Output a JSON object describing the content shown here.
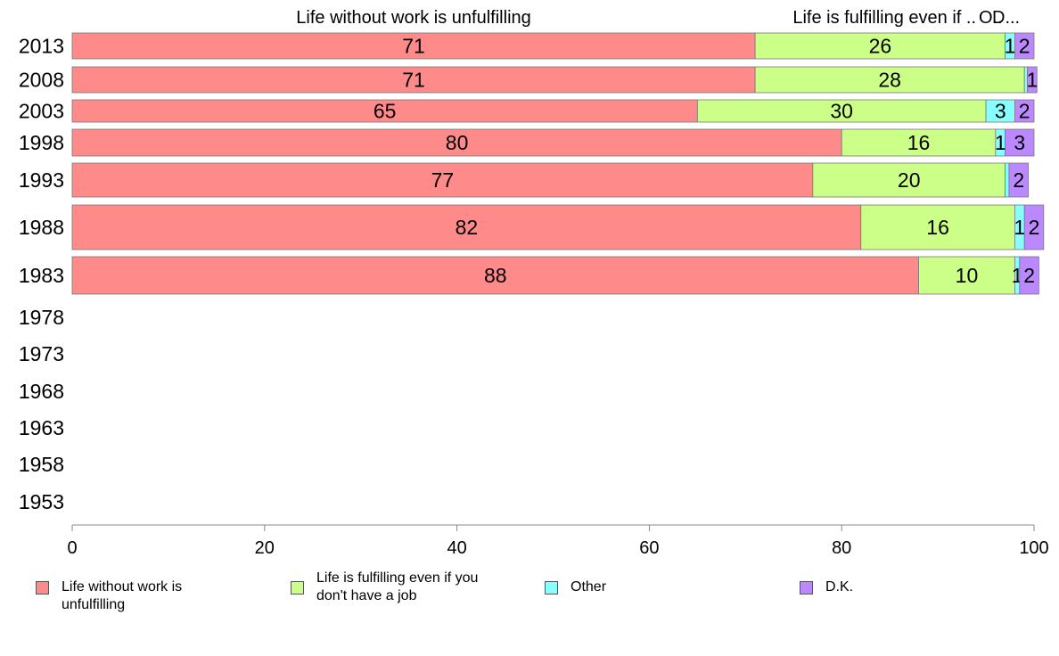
{
  "chart_data": {
    "type": "bar",
    "orientation": "horizontal",
    "stacked": true,
    "categories": [
      "2013",
      "2008",
      "2003",
      "1998",
      "1993",
      "1988",
      "1983",
      "1978",
      "1973",
      "1968",
      "1963",
      "1958",
      "1953"
    ],
    "series": [
      {
        "name": "Life without work is unfulfilling",
        "color": "#ff8a8a",
        "values": [
          71,
          71,
          65,
          80,
          77,
          82,
          88,
          null,
          null,
          null,
          null,
          null,
          null
        ]
      },
      {
        "name": "Life is fulfilling even if you don't have a job",
        "color": "#ccff88",
        "values": [
          26,
          28,
          30,
          16,
          20,
          16,
          10,
          null,
          null,
          null,
          null,
          null,
          null
        ]
      },
      {
        "name": "Other",
        "color": "#88ffff",
        "values": [
          1,
          0.3,
          3,
          1,
          0.4,
          1,
          0.5,
          null,
          null,
          null,
          null,
          null,
          null
        ]
      },
      {
        "name": "D.K.",
        "color": "#bb88ff",
        "values": [
          2,
          1,
          2,
          3,
          2,
          2,
          2,
          null,
          null,
          null,
          null,
          null,
          null
        ]
      }
    ],
    "data_labels": [
      [
        "71",
        "26",
        "1",
        "2"
      ],
      [
        "71",
        "28",
        "",
        "1"
      ],
      [
        "65",
        "30",
        "3",
        "2"
      ],
      [
        "80",
        "16",
        "1",
        "3"
      ],
      [
        "77",
        "20",
        "",
        "2"
      ],
      [
        "82",
        "16",
        "1",
        "2"
      ],
      [
        "88",
        "10",
        "1",
        "2"
      ]
    ],
    "top_labels": [
      "Life without work is unfulfilling",
      "Life is fulfilling even if ..",
      "O..",
      "D..."
    ],
    "xlim": [
      0,
      100
    ],
    "xticks": [
      0,
      20,
      40,
      60,
      80,
      100
    ],
    "legend_position": "bottom",
    "grid": false
  },
  "legend": [
    {
      "label": "Life without work is unfulfilling"
    },
    {
      "label": "Life is fulfilling even if you don't have a job"
    },
    {
      "label": "Other"
    },
    {
      "label": "D.K."
    }
  ]
}
